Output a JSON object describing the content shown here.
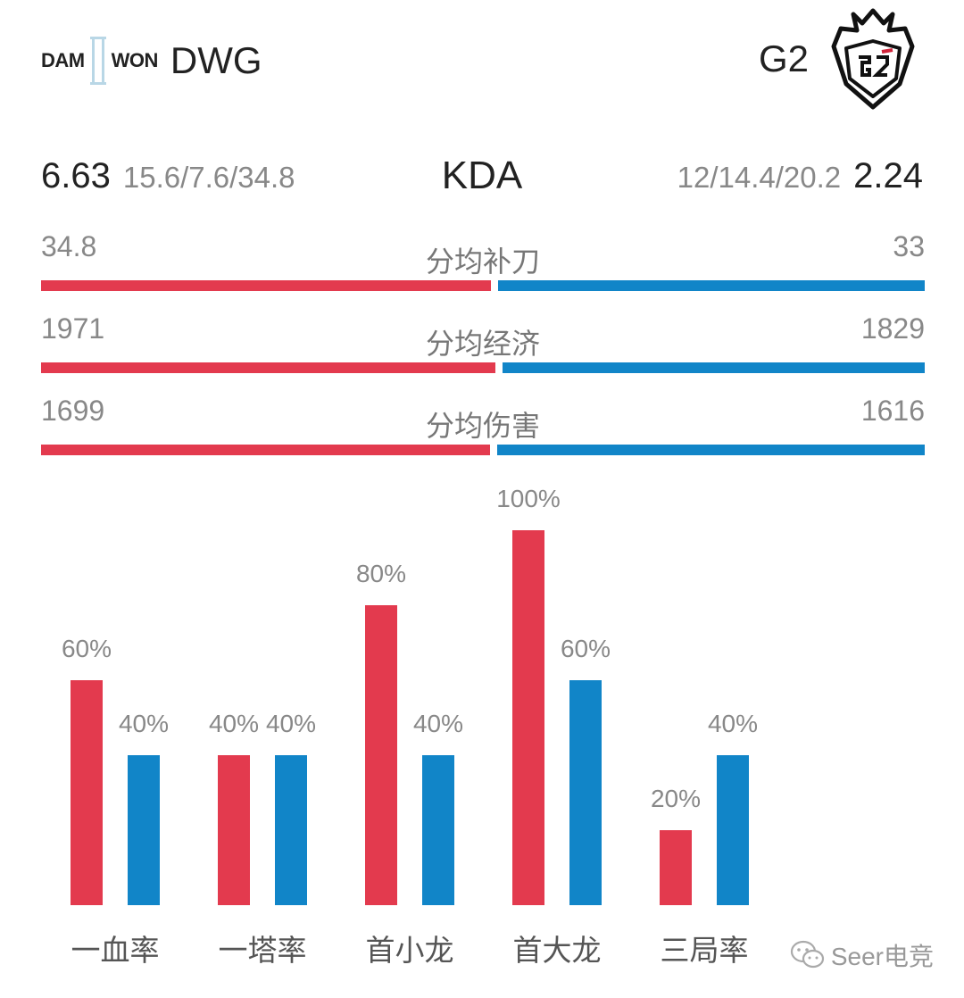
{
  "colors": {
    "team_left": "#e33a4e",
    "team_right": "#1185c8"
  },
  "header": {
    "left_logo_text": [
      "DAM",
      "WON"
    ],
    "left_team": "DWG",
    "right_team": "G2",
    "right_logo_icon": "g2-samurai-logo-icon"
  },
  "kda": {
    "title": "KDA",
    "left_value": "6.63",
    "left_detail": "15.6/7.6/34.8",
    "right_detail": "12/14.4/20.2",
    "right_value": "2.24"
  },
  "stats": [
    {
      "label": "分均补刀",
      "left": "34.8",
      "right": "33"
    },
    {
      "label": "分均经济",
      "left": "1971",
      "right": "1829"
    },
    {
      "label": "分均伤害",
      "left": "1699",
      "right": "1616"
    }
  ],
  "chart_data": {
    "type": "bar",
    "categories": [
      "一血率",
      "一塔率",
      "首小龙",
      "首大龙",
      "三局率"
    ],
    "series": [
      {
        "name": "DWG",
        "values": [
          60,
          40,
          80,
          100,
          20
        ],
        "color": "#e33a4e"
      },
      {
        "name": "G2",
        "values": [
          40,
          40,
          40,
          60,
          40
        ],
        "color": "#1185c8"
      }
    ],
    "value_labels": {
      "DWG": [
        "60%",
        "40%",
        "80%",
        "100%",
        "20%"
      ],
      "G2": [
        "40%",
        "40%",
        "40%",
        "60%",
        "40%"
      ]
    },
    "ylim": [
      0,
      100
    ],
    "grid": false,
    "legend": "none"
  },
  "watermark": {
    "text": "Seer电竞",
    "icon": "wechat-icon"
  }
}
